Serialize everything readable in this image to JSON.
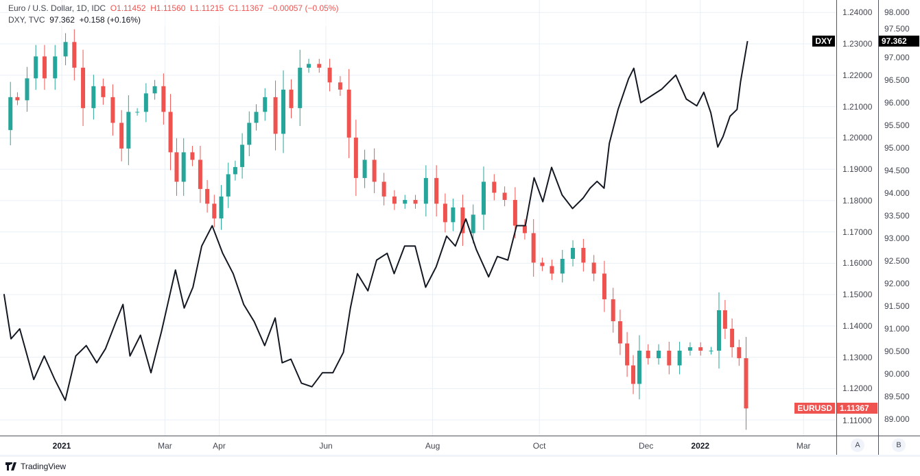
{
  "legend": {
    "main_title": "Euro / U.S. Dollar, 1D, IDC",
    "open": "O1.11452",
    "high": "H1.11560",
    "low": "L1.11215",
    "close": "C1.11367",
    "change": "−0.00057 (−0.05%)",
    "compare_title": "DXY, TVC",
    "compare_value": "97.362",
    "compare_change": "+0.158 (+0.16%)"
  },
  "tags": {
    "dxy_label": "DXY",
    "dxy_value": "97.362",
    "eur_label": "EURUSD",
    "eur_value": "1.11367"
  },
  "axis_buttons": {
    "a": "A",
    "b": "B"
  },
  "footer": {
    "brand": "TradingView"
  },
  "colors": {
    "up": "#26a69a",
    "down": "#ef5350",
    "line": "#131722",
    "grid": "#e9eff5"
  },
  "chart_data": {
    "type": "candlestick+line",
    "x_unit": "days since 2021-01-01",
    "xlim": [
      -35,
      440
    ],
    "time_ticks": [
      {
        "label": "2021",
        "day": 0,
        "bold": true
      },
      {
        "label": "Mar",
        "day": 59
      },
      {
        "label": "Apr",
        "day": 90
      },
      {
        "label": "Jun",
        "day": 151
      },
      {
        "label": "Aug",
        "day": 212
      },
      {
        "label": "Oct",
        "day": 273
      },
      {
        "label": "Dec",
        "day": 334
      },
      {
        "label": "2022",
        "day": 365,
        "bold": true
      },
      {
        "label": "Mar",
        "day": 424
      }
    ],
    "left_axis": {
      "name": "EURUSD",
      "ylim": [
        1.105,
        1.244
      ],
      "ticks": [
        "1.24000",
        "1.23000",
        "1.22000",
        "1.21000",
        "1.20000",
        "1.19000",
        "1.18000",
        "1.17000",
        "1.16000",
        "1.15000",
        "1.14000",
        "1.13000",
        "1.12000",
        "1.11000"
      ]
    },
    "right_axis": {
      "name": "DXY",
      "ylim": [
        88.64,
        98.27
      ],
      "ticks": [
        "98.000",
        "97.500",
        "97.000",
        "96.500",
        "96.000",
        "95.500",
        "95.000",
        "94.500",
        "94.000",
        "93.500",
        "93.000",
        "92.500",
        "92.000",
        "91.500",
        "91.000",
        "90.500",
        "90.000",
        "89.500",
        "89.000"
      ]
    },
    "series": [
      {
        "name": "EURUSD",
        "style": "candles",
        "points": [
          [
            -32,
            1.2025
          ],
          [
            -29,
            1.213
          ],
          [
            -24,
            1.212
          ],
          [
            -18,
            1.219
          ],
          [
            -14,
            1.226
          ],
          [
            -8,
            1.219
          ],
          [
            -2,
            1.226
          ],
          [
            4,
            1.2306
          ],
          [
            8,
            1.2224
          ],
          [
            14,
            1.2095
          ],
          [
            20,
            1.2165
          ],
          [
            25,
            1.213
          ],
          [
            31,
            1.2048
          ],
          [
            35,
            1.1966
          ],
          [
            39,
            1.2083
          ],
          [
            45,
            1.2083
          ],
          [
            49,
            1.2142
          ],
          [
            55,
            1.2165
          ],
          [
            59,
            1.2083
          ],
          [
            63,
            1.1954
          ],
          [
            66,
            1.186
          ],
          [
            71,
            1.1954
          ],
          [
            76,
            1.193
          ],
          [
            80,
            1.1837
          ],
          [
            84,
            1.179
          ],
          [
            88,
            1.1743
          ],
          [
            92,
            1.1813
          ],
          [
            96,
            1.1884
          ],
          [
            100,
            1.1907
          ],
          [
            104,
            1.1978
          ],
          [
            108,
            1.2048
          ],
          [
            112,
            1.2083
          ],
          [
            118,
            1.213
          ],
          [
            124,
            1.2013
          ],
          [
            127,
            1.2154
          ],
          [
            133,
            1.2095
          ],
          [
            137,
            1.2224
          ],
          [
            143,
            1.2236
          ],
          [
            149,
            1.2224
          ],
          [
            155,
            1.2177
          ],
          [
            161,
            1.2154
          ],
          [
            165,
            1.2001
          ],
          [
            169,
            1.1872
          ],
          [
            175,
            1.193
          ],
          [
            180,
            1.186
          ],
          [
            186,
            1.1813
          ],
          [
            192,
            1.179
          ],
          [
            198,
            1.1802
          ],
          [
            204,
            1.179
          ],
          [
            210,
            1.1872
          ],
          [
            216,
            1.179
          ],
          [
            220,
            1.1731
          ],
          [
            225,
            1.1778
          ],
          [
            231,
            1.1696
          ],
          [
            237,
            1.1755
          ],
          [
            243,
            1.186
          ],
          [
            249,
            1.1825
          ],
          [
            255,
            1.1802
          ],
          [
            261,
            1.172
          ],
          [
            266,
            1.1696
          ],
          [
            271,
            1.1602
          ],
          [
            276,
            1.1591
          ],
          [
            282,
            1.1567
          ],
          [
            288,
            1.1614
          ],
          [
            294,
            1.1649
          ],
          [
            300,
            1.1602
          ],
          [
            306,
            1.1567
          ],
          [
            312,
            1.1485
          ],
          [
            316,
            1.1415
          ],
          [
            320,
            1.1344
          ],
          [
            324,
            1.1274
          ],
          [
            327,
            1.1215
          ],
          [
            331,
            1.1321
          ],
          [
            337,
            1.1297
          ],
          [
            343,
            1.1321
          ],
          [
            349,
            1.1274
          ],
          [
            355,
            1.1321
          ],
          [
            361,
            1.1332
          ],
          [
            367,
            1.1321
          ],
          [
            373,
            1.1321
          ],
          [
            376,
            1.145
          ],
          [
            380,
            1.1391
          ],
          [
            384,
            1.1332
          ],
          [
            388,
            1.1297
          ],
          [
            392,
            1.11367
          ]
        ]
      },
      {
        "name": "DXY",
        "style": "line",
        "points": [
          [
            -33,
            91.77
          ],
          [
            -29,
            90.78
          ],
          [
            -24,
            91.0
          ],
          [
            -16,
            89.88
          ],
          [
            -10,
            90.4
          ],
          [
            -4,
            89.88
          ],
          [
            2,
            89.42
          ],
          [
            8,
            90.4
          ],
          [
            14,
            90.63
          ],
          [
            20,
            90.25
          ],
          [
            25,
            90.56
          ],
          [
            31,
            91.16
          ],
          [
            35,
            91.54
          ],
          [
            39,
            90.4
          ],
          [
            45,
            90.86
          ],
          [
            51,
            90.03
          ],
          [
            57,
            90.94
          ],
          [
            61,
            91.62
          ],
          [
            65,
            92.3
          ],
          [
            70,
            91.46
          ],
          [
            75,
            91.92
          ],
          [
            80,
            92.83
          ],
          [
            86,
            93.28
          ],
          [
            92,
            92.67
          ],
          [
            98,
            92.22
          ],
          [
            104,
            91.54
          ],
          [
            110,
            91.16
          ],
          [
            116,
            90.63
          ],
          [
            122,
            91.24
          ],
          [
            126,
            90.25
          ],
          [
            131,
            90.33
          ],
          [
            137,
            89.8
          ],
          [
            143,
            89.72
          ],
          [
            149,
            90.03
          ],
          [
            155,
            90.03
          ],
          [
            161,
            90.48
          ],
          [
            165,
            91.46
          ],
          [
            169,
            92.22
          ],
          [
            175,
            91.84
          ],
          [
            180,
            92.52
          ],
          [
            186,
            92.67
          ],
          [
            190,
            92.22
          ],
          [
            196,
            92.83
          ],
          [
            202,
            92.83
          ],
          [
            208,
            91.92
          ],
          [
            214,
            92.37
          ],
          [
            220,
            93.05
          ],
          [
            225,
            92.83
          ],
          [
            231,
            93.43
          ],
          [
            237,
            92.75
          ],
          [
            244,
            92.15
          ],
          [
            249,
            92.6
          ],
          [
            255,
            92.52
          ],
          [
            260,
            93.28
          ],
          [
            265,
            93.28
          ],
          [
            270,
            94.34
          ],
          [
            275,
            93.81
          ],
          [
            280,
            94.57
          ],
          [
            286,
            93.96
          ],
          [
            292,
            93.66
          ],
          [
            298,
            93.89
          ],
          [
            302,
            94.11
          ],
          [
            306,
            94.26
          ],
          [
            310,
            94.11
          ],
          [
            313,
            95.1
          ],
          [
            318,
            95.85
          ],
          [
            324,
            96.53
          ],
          [
            327,
            96.76
          ],
          [
            331,
            96.0
          ],
          [
            337,
            96.15
          ],
          [
            343,
            96.3
          ],
          [
            351,
            96.61
          ],
          [
            357,
            96.08
          ],
          [
            363,
            95.93
          ],
          [
            367,
            96.23
          ],
          [
            371,
            95.78
          ],
          [
            375,
            95.02
          ],
          [
            378,
            95.25
          ],
          [
            382,
            95.7
          ],
          [
            386,
            95.85
          ],
          [
            388,
            96.46
          ],
          [
            392,
            97.362
          ]
        ]
      }
    ]
  }
}
